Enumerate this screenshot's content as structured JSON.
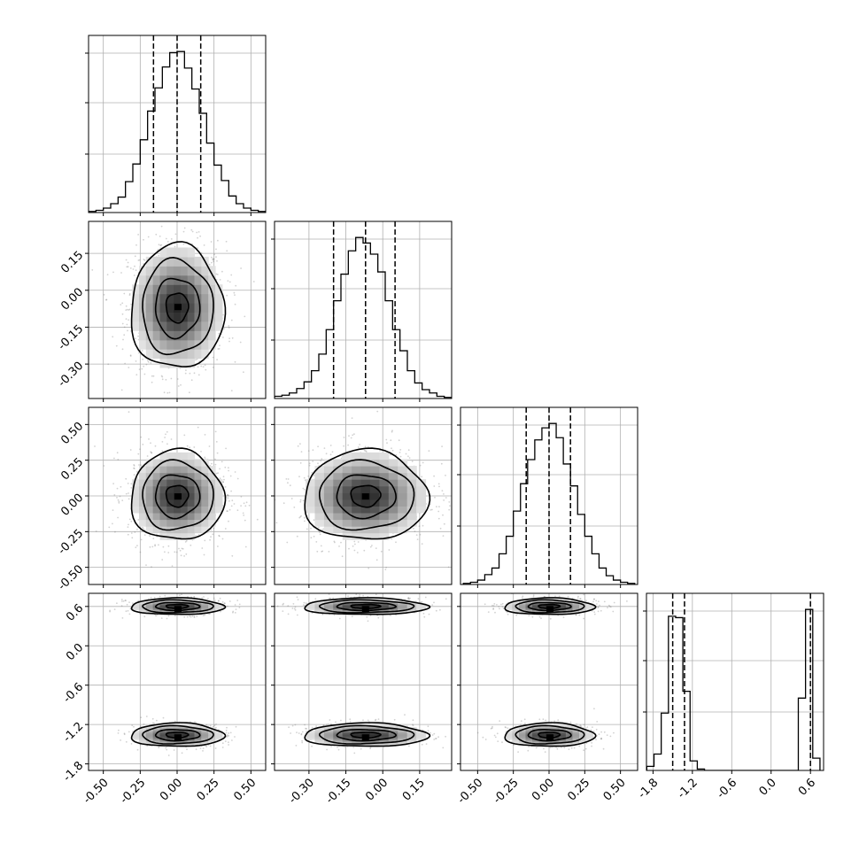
{
  "chart_data": {
    "type": "corner",
    "grid": true,
    "n_params": 4,
    "ticks": [
      [
        "-0.50",
        "-0.25",
        "0.00",
        "0.25",
        "0.50"
      ],
      [
        "-0.30",
        "-0.15",
        "0.00",
        "0.15"
      ],
      [
        "-0.50",
        "-0.25",
        "0.00",
        "0.25",
        "0.50"
      ],
      [
        "-1.8",
        "-1.2",
        "-0.6",
        "0.0",
        "0.6"
      ]
    ],
    "tick_values": [
      [
        -0.5,
        -0.25,
        0.0,
        0.25,
        0.5
      ],
      [
        -0.3,
        -0.15,
        0.0,
        0.15
      ],
      [
        -0.5,
        -0.25,
        0.0,
        0.25,
        0.5
      ],
      [
        -1.8,
        -1.2,
        -0.6,
        0.0,
        0.6
      ]
    ],
    "ranges": [
      [
        -0.6,
        0.6
      ],
      [
        -0.44,
        0.28
      ],
      [
        -0.62,
        0.62
      ],
      [
        -1.9,
        0.8
      ]
    ],
    "quantiles": [
      [
        -0.16,
        0.0,
        0.16
      ],
      [
        -0.2,
        -0.07,
        0.05
      ],
      [
        -0.16,
        0.0,
        0.15
      ],
      [
        -1.5,
        -1.32,
        0.6
      ]
    ],
    "histograms": [
      {
        "x": [
          -0.575,
          -0.525,
          -0.475,
          -0.425,
          -0.375,
          -0.325,
          -0.275,
          -0.225,
          -0.175,
          -0.125,
          -0.075,
          -0.025,
          0.025,
          0.075,
          0.125,
          0.175,
          0.225,
          0.275,
          0.325,
          0.375,
          0.425,
          0.475,
          0.525,
          0.575
        ],
        "counts": [
          1,
          2,
          4,
          8,
          14,
          28,
          44,
          66,
          92,
          113,
          132,
          145,
          146,
          131,
          112,
          90,
          63,
          43,
          29,
          15,
          8,
          4,
          2,
          1
        ]
      },
      {
        "x": [
          -0.425,
          -0.395,
          -0.365,
          -0.335,
          -0.305,
          -0.275,
          -0.245,
          -0.215,
          -0.185,
          -0.155,
          -0.125,
          -0.095,
          -0.065,
          -0.035,
          -0.005,
          0.025,
          0.055,
          0.085,
          0.115,
          0.145,
          0.175,
          0.205,
          0.235,
          0.265
        ],
        "counts": [
          2,
          3,
          5,
          9,
          15,
          25,
          40,
          62,
          88,
          112,
          133,
          145,
          140,
          130,
          114,
          88,
          62,
          43,
          25,
          14,
          8,
          5,
          2,
          1
        ]
      },
      {
        "x": [
          -0.575,
          -0.525,
          -0.475,
          -0.425,
          -0.375,
          -0.325,
          -0.275,
          -0.225,
          -0.175,
          -0.125,
          -0.075,
          -0.025,
          0.025,
          0.075,
          0.125,
          0.175,
          0.225,
          0.275,
          0.325,
          0.375,
          0.425,
          0.475,
          0.525,
          0.575
        ],
        "counts": [
          1,
          2,
          4,
          9,
          15,
          28,
          44,
          67,
          92,
          114,
          132,
          143,
          147,
          134,
          110,
          90,
          64,
          44,
          28,
          15,
          8,
          4,
          2,
          1
        ]
      },
      {
        "x": [
          -1.84,
          -1.73,
          -1.62,
          -1.51,
          -1.4,
          -1.29,
          -1.18,
          -1.07,
          -0.96,
          -0.85,
          -0.74,
          -0.63,
          -0.52,
          -0.41,
          -0.3,
          -0.19,
          -0.08,
          0.03,
          0.14,
          0.25,
          0.36,
          0.47,
          0.58,
          0.69
        ],
        "counts": [
          3,
          12,
          42,
          113,
          112,
          58,
          7,
          1,
          0,
          0,
          0,
          0,
          0,
          0,
          0,
          0,
          0,
          0,
          0,
          0,
          0,
          53,
          118,
          9
        ]
      }
    ],
    "pairs": [
      {
        "row": 1,
        "col": 0,
        "cx": 0.0,
        "cy": -0.07,
        "sx": 0.15,
        "sy": 0.12
      },
      {
        "row": 2,
        "col": 0,
        "cx": 0.0,
        "cy": 0.0,
        "sx": 0.15,
        "sy": 0.15
      },
      {
        "row": 2,
        "col": 1,
        "cx": -0.07,
        "cy": 0.0,
        "sx": 0.12,
        "sy": 0.15
      },
      {
        "row": 3,
        "col": 0,
        "cx": 0.0,
        "cy": 0.6,
        "sx": 0.15,
        "sy": 0.06,
        "cy2": -1.36,
        "sy2": 0.085
      },
      {
        "row": 3,
        "col": 1,
        "cx": -0.07,
        "cy": 0.6,
        "sx": 0.12,
        "sy": 0.06,
        "cy2": -1.36,
        "sy2": 0.085
      },
      {
        "row": 3,
        "col": 2,
        "cx": 0.0,
        "cy": 0.6,
        "sx": 0.15,
        "sy": 0.06,
        "cy2": -1.36,
        "sy2": 0.085
      }
    ],
    "colors": {
      "line": "#000000",
      "grid": "#b0b0b0",
      "points": "#7f7f7f",
      "density_dark": "#000000",
      "density_light": "#ffffff"
    }
  }
}
